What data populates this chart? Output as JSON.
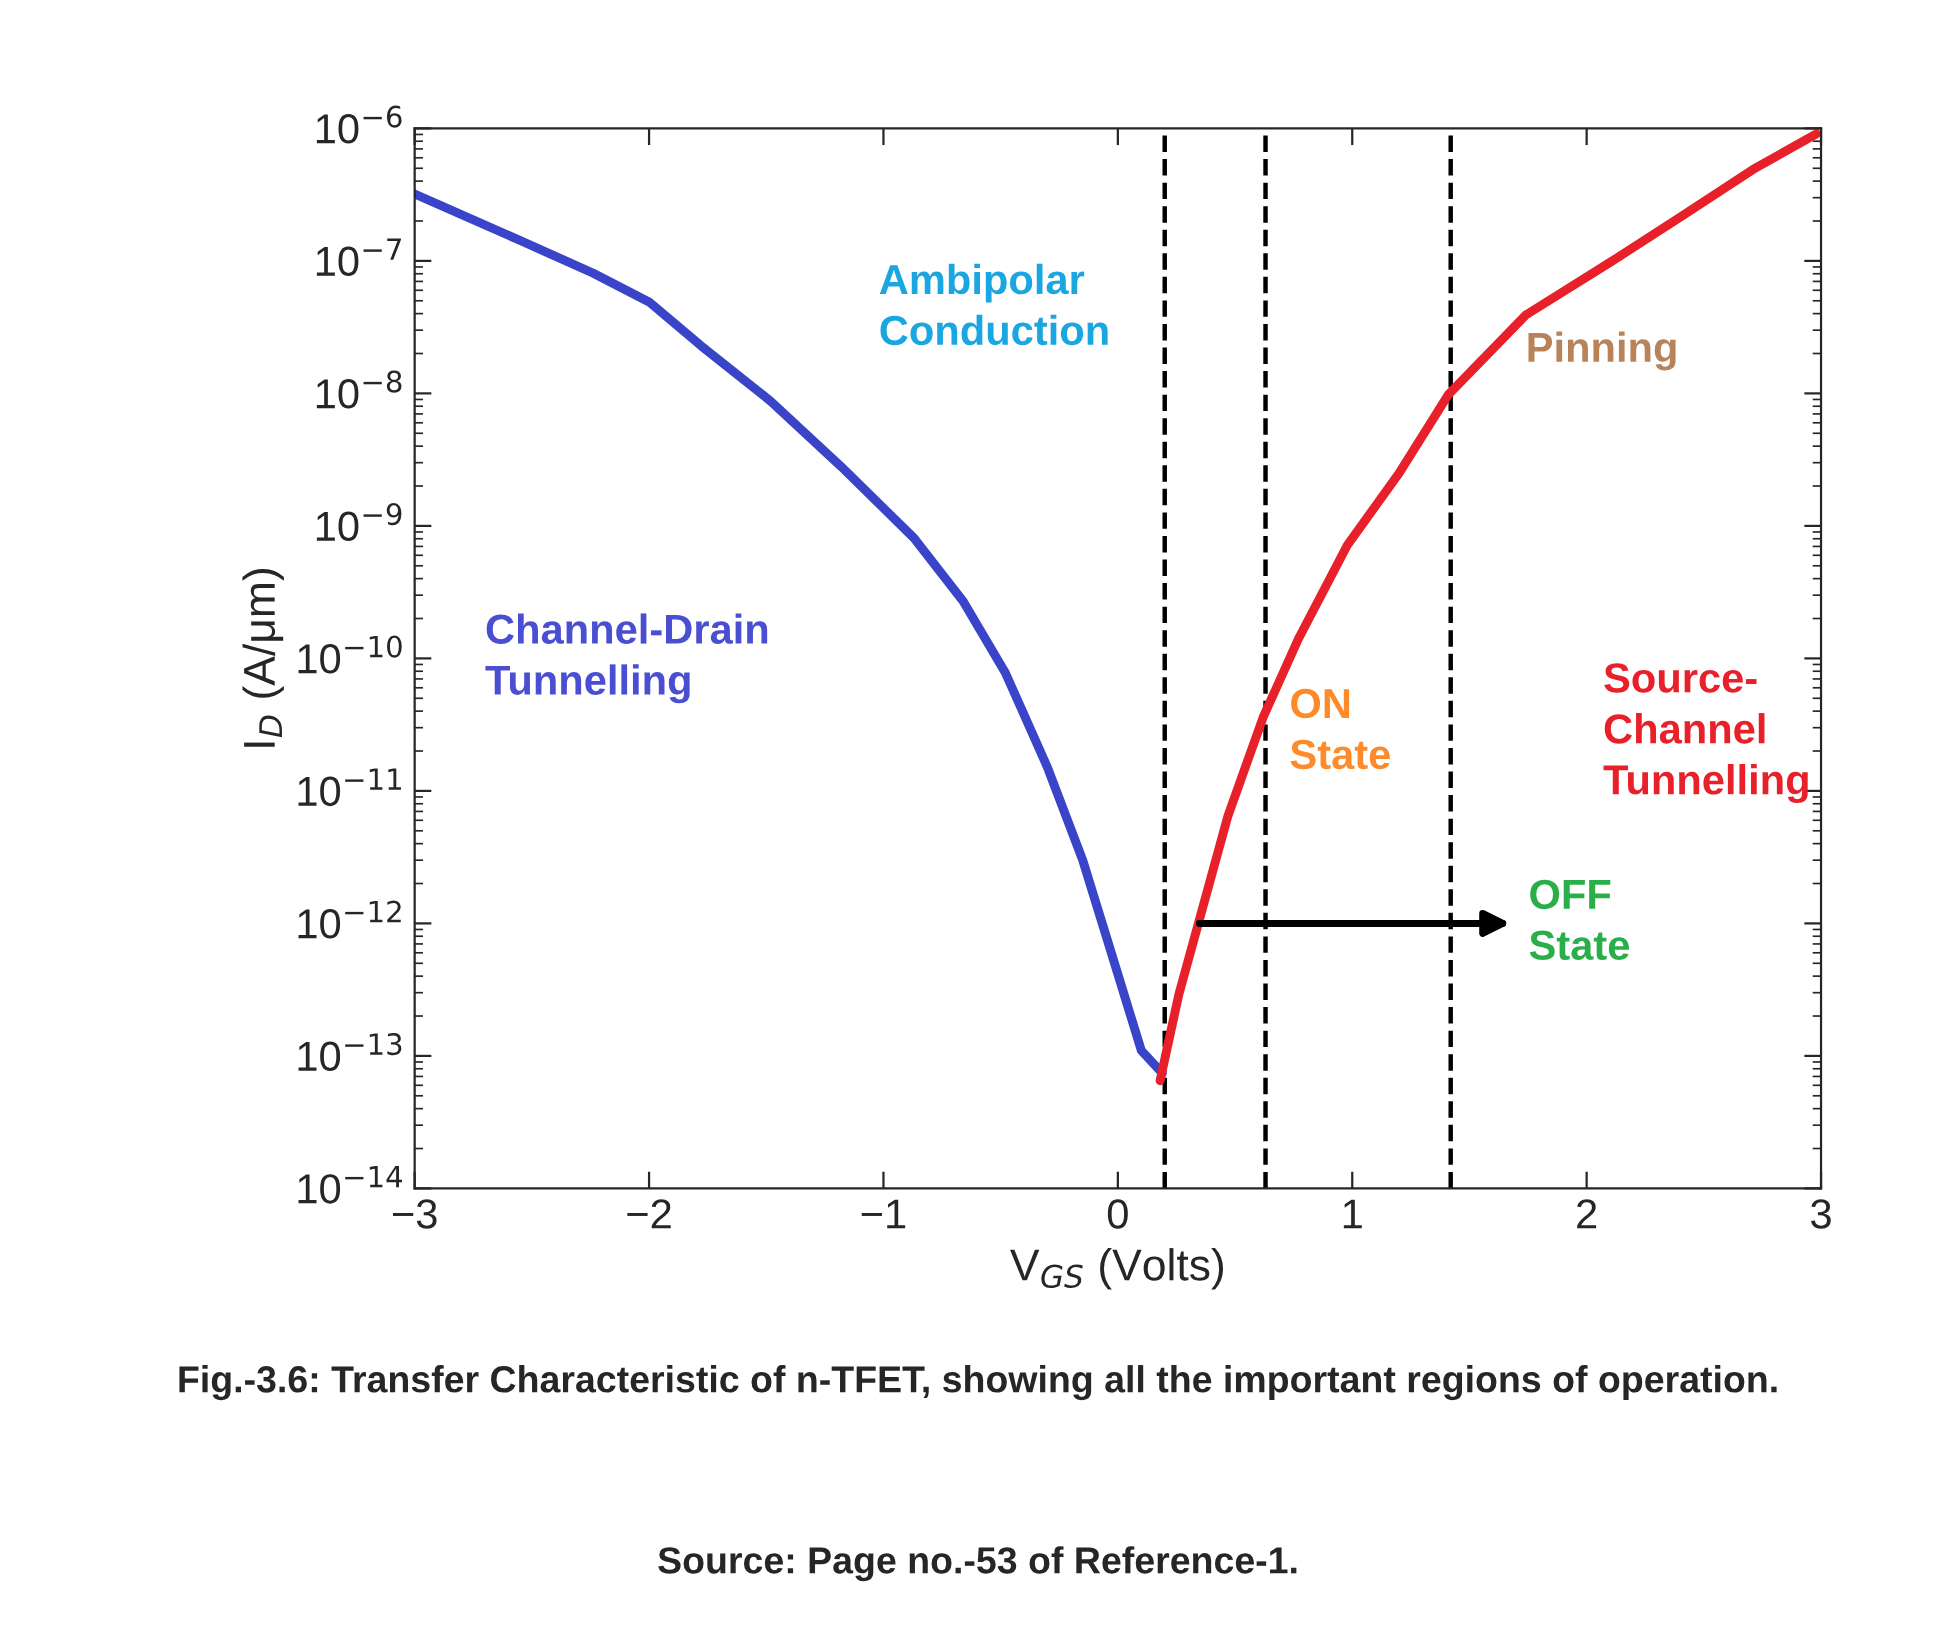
{
  "chart_data": {
    "type": "line",
    "xlabel": "V$_{GS}$ (Volts)",
    "ylabel": "I$_{D}$ (A/μm)",
    "log": "y",
    "grid": false,
    "marker": "none",
    "line_style": "solid",
    "xlim": [
      -3,
      3
    ],
    "xticks": [
      {
        "value": -3,
        "label": "−3"
      },
      {
        "value": -2,
        "label": "−2"
      },
      {
        "value": -1,
        "label": "−1"
      },
      0,
      1,
      2,
      3
    ],
    "ylim": [
      1e-14,
      1e-06
    ],
    "yticks": [
      {
        "value": 1e-14,
        "label": "10$^{−14}$"
      },
      {
        "value": 1e-13,
        "label": "10$^{−13}$"
      },
      {
        "value": 1e-12,
        "label": "10$^{−12}$"
      },
      {
        "value": 1e-11,
        "label": "10$^{−11}$"
      },
      {
        "value": 1e-10,
        "label": "10$^{−10}$"
      },
      {
        "value": 1e-09,
        "label": "10$^{−9}$"
      },
      {
        "value": 1e-08,
        "label": "10$^{−8}$"
      },
      {
        "value": 1e-07,
        "label": "10$^{−7}$"
      },
      {
        "value": 1e-06,
        "label": "10$^{−6}$"
      }
    ],
    "series": [
      {
        "color": "#3a44c8",
        "x": [
          -3,
          -2.54,
          -2.24,
          -2,
          -1.78,
          -1.48,
          -1.18,
          -0.87,
          -0.66,
          -0.48,
          -0.3,
          -0.15,
          -0.02,
          0.1,
          0.19
        ],
        "values": [
          3.2e-07,
          1.4e-07,
          8.1e-08,
          4.9e-08,
          2.3e-08,
          8.7e-09,
          2.8e-09,
          8.1e-10,
          2.7e-10,
          7.8e-11,
          1.5e-11,
          3e-12,
          5.4e-13,
          1.1e-13,
          7.4e-14
        ]
      },
      {
        "color": "#e8202a",
        "x": [
          0.18,
          0.26,
          0.35,
          0.47,
          0.62,
          0.77,
          0.98,
          1.2,
          1.41,
          1.74,
          2.11,
          2.41,
          2.71,
          2.98
        ],
        "values": [
          6.5e-14,
          2.9e-13,
          1.1e-12,
          6.5e-12,
          3.6e-11,
          1.4e-10,
          7.2e-10,
          2.5e-09,
          9.8e-09,
          3.9e-08,
          1e-07,
          2.2e-07,
          4.9e-07,
          9.1e-07
        ]
      }
    ],
    "ref_lines": [
      {
        "axis": "x",
        "value": 0.2,
        "color": "#000000",
        "line_style": "dashed"
      },
      {
        "axis": "x",
        "value": 0.63,
        "color": "#000000",
        "line_style": "dashed"
      },
      {
        "axis": "x",
        "value": 1.42,
        "color": "#000000",
        "line_style": "dashed"
      }
    ],
    "annotations": [
      "Ambipolar\nConduction",
      "Channel-Drain\nTunnelling",
      "Pinning",
      "ON\nState",
      "Source-\nChannel\nTunnelling",
      "OFF\nState",
      "Fig.-3.6: Transfer Characteristic of n-TFET, showing all the important regions of operation.",
      "Source: Page no.-53 of Reference-1."
    ]
  }
}
